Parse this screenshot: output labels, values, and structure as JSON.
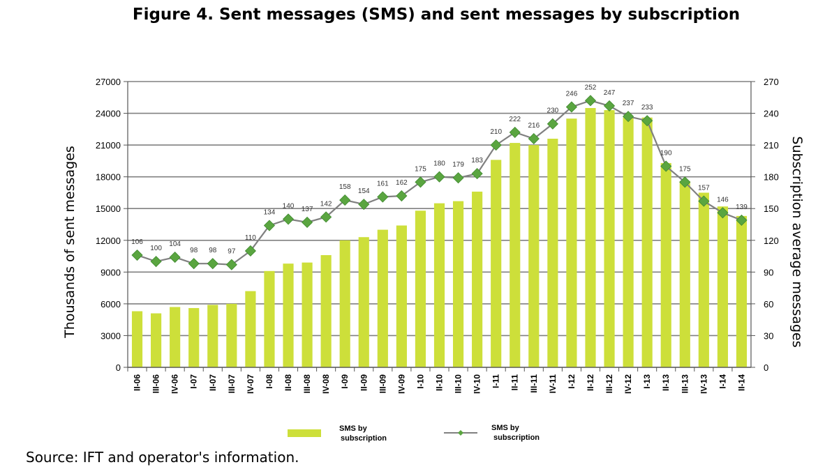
{
  "title": "Figure 4. Sent messages (SMS) and sent messages by subscription",
  "source": "Source: IFT and operator's information.",
  "colors": {
    "bar": "#cddf3a",
    "line": "#808080",
    "marker": "#5aa540",
    "grid": "#808080"
  },
  "chart_data": {
    "type": "bar",
    "categories": [
      "II-06",
      "III-06",
      "IV-06",
      "I-07",
      "II-07",
      "III-07",
      "IV-07",
      "I-08",
      "II-08",
      "III-08",
      "IV-08",
      "I-09",
      "II-09",
      "III-09",
      "IV-09",
      "I-10",
      "II-10",
      "III-10",
      "IV-10",
      "I-11",
      "II-11",
      "III-11",
      "IV-11",
      "I-12",
      "II-12",
      "III-12",
      "IV-12",
      "I-13",
      "II-13",
      "III-13",
      "IV-13",
      "I-14",
      "II-14"
    ],
    "ylabel": "Thousands of sent messages",
    "y2label": "Subscription average messages",
    "ylim": [
      0,
      27000
    ],
    "y2lim": [
      0,
      270
    ],
    "yticks": [
      "0",
      "3000",
      "6000",
      "9000",
      "12000",
      "15000",
      "18000",
      "21000",
      "24000",
      "27000"
    ],
    "y2ticks": [
      "0",
      "30",
      "60",
      "90",
      "120",
      "150",
      "180",
      "210",
      "240",
      "270"
    ],
    "grid": true,
    "legend_position": "bottom",
    "series": [
      {
        "name": "SMS by subscription",
        "type": "bar",
        "axis": "left",
        "values": [
          5300,
          5100,
          5700,
          5600,
          5900,
          6000,
          7200,
          9100,
          9800,
          9900,
          10600,
          12000,
          12300,
          13000,
          13400,
          14800,
          15500,
          15700,
          16600,
          19600,
          21200,
          21000,
          21600,
          23500,
          24500,
          24300,
          23600,
          23600,
          19300,
          17600,
          16500,
          15200,
          14300
        ]
      },
      {
        "name": "SMS by subscription",
        "type": "line",
        "axis": "right",
        "values": [
          106,
          100,
          104,
          98,
          98,
          97,
          110,
          134,
          140,
          137,
          142,
          158,
          154,
          161,
          162,
          175,
          180,
          179,
          183,
          210,
          222,
          216,
          230,
          246,
          252,
          247,
          237,
          233,
          190,
          175,
          157,
          146,
          139
        ]
      }
    ]
  }
}
